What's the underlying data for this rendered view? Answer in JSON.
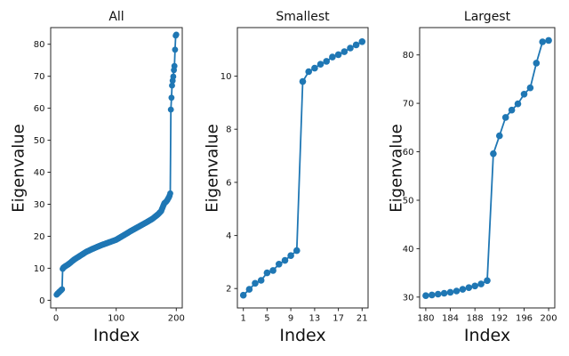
{
  "figure": {
    "background": "#ffffff"
  },
  "style": {
    "accent": "#1f77b4",
    "spine_color": "#262626",
    "text_color": "#111111"
  },
  "chart_data": [
    {
      "type": "line",
      "title": "All",
      "xlabel": "Index",
      "ylabel": "Eigenvalue",
      "xlim": [
        -8.95,
        209.95
      ],
      "ylim": [
        -2.4,
        85.2
      ],
      "xticks": [
        0,
        100,
        200
      ],
      "yticks": [
        0,
        10,
        20,
        30,
        40,
        50,
        60,
        70,
        80
      ],
      "legend": null,
      "grid": false,
      "points_spec": {
        "n_points": 200,
        "description": "200 sorted eigenvalues: indices 1-21 equal Smallest panel values, indices 180-200 equal Largest panel values, indices 22-179 interpolated from middle_anchors",
        "smallest_values_idx_1_21": [
          1.75,
          1.97,
          2.2,
          2.31,
          2.59,
          2.68,
          2.92,
          3.06,
          3.24,
          3.43,
          9.8,
          10.17,
          10.3,
          10.45,
          10.56,
          10.72,
          10.81,
          10.92,
          11.06,
          11.18,
          11.3
        ],
        "middle_anchors": [
          [
            21,
            11.3
          ],
          [
            30,
            12.7
          ],
          [
            40,
            13.9
          ],
          [
            50,
            15.1
          ],
          [
            60,
            16.0
          ],
          [
            75,
            17.2
          ],
          [
            100,
            18.9
          ],
          [
            125,
            21.7
          ],
          [
            150,
            24.3
          ],
          [
            160,
            25.4
          ],
          [
            170,
            26.9
          ],
          [
            175,
            27.9
          ],
          [
            180,
            30.3
          ]
        ],
        "largest_values_idx_180_200": [
          30.3,
          30.45,
          30.6,
          30.8,
          31.0,
          31.25,
          31.6,
          31.95,
          32.3,
          32.7,
          33.4,
          59.6,
          63.3,
          67.1,
          68.6,
          69.9,
          71.9,
          73.2,
          78.3,
          82.7,
          83.0
        ]
      }
    },
    {
      "type": "line",
      "title": "Smallest",
      "xlabel": "Index",
      "ylabel": "Eigenvalue",
      "xlim": [
        0,
        22
      ],
      "ylim": [
        1.27,
        11.83
      ],
      "xticks": [
        1,
        5,
        9,
        13,
        17,
        21
      ],
      "yticks": [
        2,
        4,
        6,
        8,
        10
      ],
      "legend": null,
      "grid": false,
      "x": [
        1,
        2,
        3,
        4,
        5,
        6,
        7,
        8,
        9,
        10,
        11,
        12,
        13,
        14,
        15,
        16,
        17,
        18,
        19,
        20,
        21
      ],
      "y": [
        1.75,
        1.97,
        2.2,
        2.31,
        2.59,
        2.68,
        2.92,
        3.06,
        3.24,
        3.43,
        9.8,
        10.17,
        10.3,
        10.45,
        10.56,
        10.72,
        10.81,
        10.92,
        11.06,
        11.18,
        11.3
      ]
    },
    {
      "type": "line",
      "title": "Largest",
      "xlabel": "Index",
      "ylabel": "Eigenvalue",
      "xlim": [
        179,
        201
      ],
      "ylim": [
        27.76,
        85.64
      ],
      "xticks": [
        180,
        184,
        188,
        192,
        196,
        200
      ],
      "yticks": [
        30,
        40,
        50,
        60,
        70,
        80
      ],
      "legend": null,
      "grid": false,
      "x": [
        180,
        181,
        182,
        183,
        184,
        185,
        186,
        187,
        188,
        189,
        190,
        191,
        192,
        193,
        194,
        195,
        196,
        197,
        198,
        199,
        200
      ],
      "y": [
        30.3,
        30.45,
        30.6,
        30.8,
        31.0,
        31.25,
        31.6,
        31.95,
        32.3,
        32.7,
        33.4,
        59.6,
        63.3,
        67.1,
        68.6,
        69.9,
        71.9,
        73.2,
        78.3,
        82.7,
        83.0
      ]
    }
  ]
}
